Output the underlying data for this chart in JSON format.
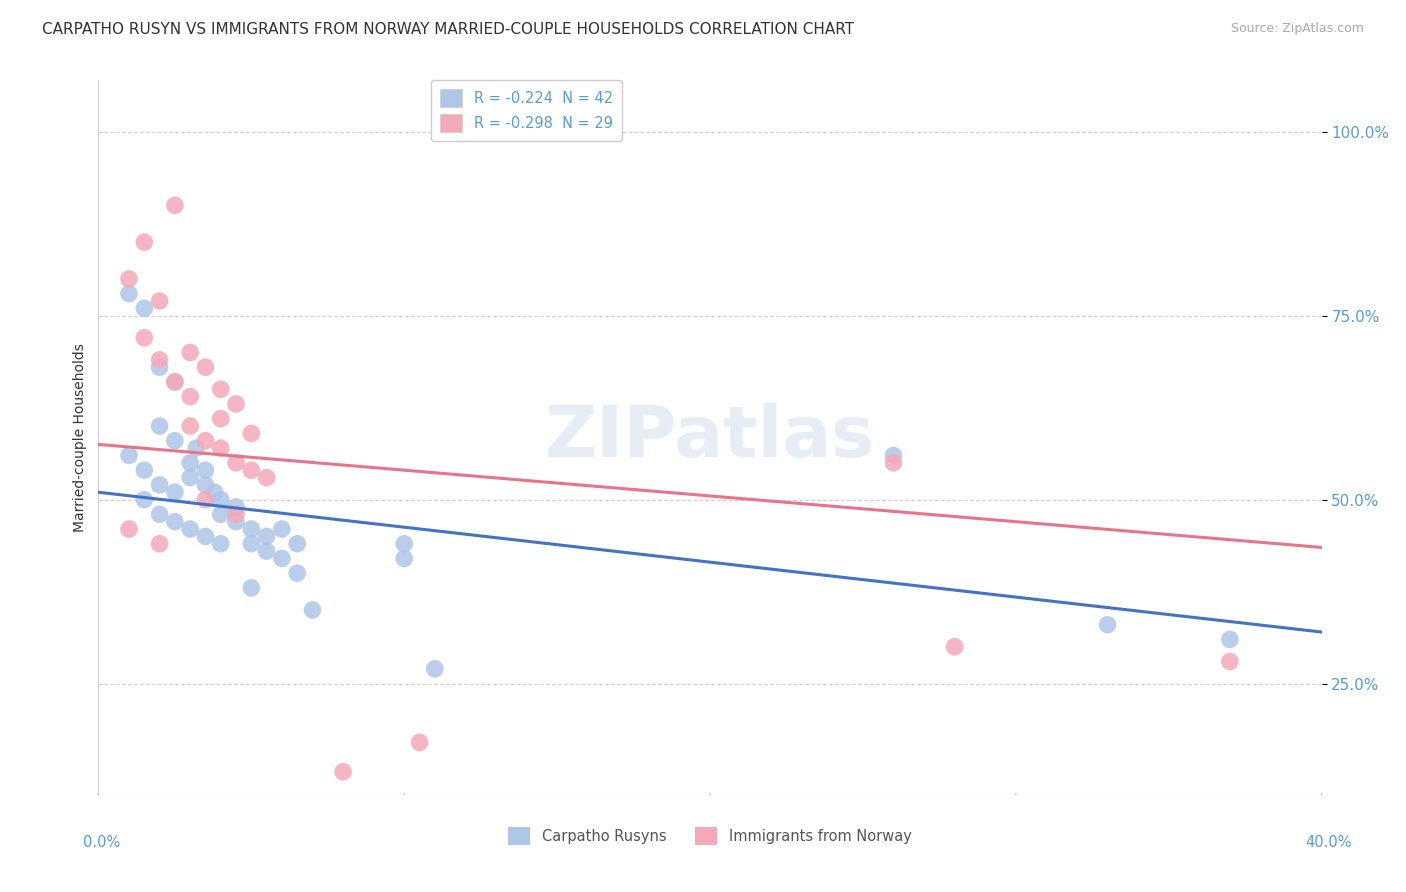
{
  "title": "CARPATHO RUSYN VS IMMIGRANTS FROM NORWAY MARRIED-COUPLE HOUSEHOLDS CORRELATION CHART",
  "source": "Source: ZipAtlas.com",
  "ylabel": "Married-couple Households",
  "xlim": [
    0.0,
    40.0
  ],
  "ylim": [
    10.0,
    107.0
  ],
  "yticks": [
    25.0,
    50.0,
    75.0,
    100.0
  ],
  "ytick_labels": [
    "25.0%",
    "50.0%",
    "75.0%",
    "100.0%"
  ],
  "background_color": "#ffffff",
  "grid_color": "#d0d0d0",
  "watermark": "ZIPatlas",
  "legend_entries": [
    {
      "label": "R = -0.224  N = 42",
      "color": "#aec6e8"
    },
    {
      "label": "R = -0.298  N = 29",
      "color": "#f4a8b8"
    }
  ],
  "legend_bottom": [
    {
      "label": "Carpatho Rusyns",
      "color": "#aec6e8"
    },
    {
      "label": "Immigrants from Norway",
      "color": "#f4a8b8"
    }
  ],
  "blue_scatter": [
    [
      1.0,
      78
    ],
    [
      1.5,
      76
    ],
    [
      2.0,
      68
    ],
    [
      2.5,
      66
    ],
    [
      2.0,
      60
    ],
    [
      2.5,
      58
    ],
    [
      3.0,
      55
    ],
    [
      3.0,
      53
    ],
    [
      3.2,
      57
    ],
    [
      3.5,
      54
    ],
    [
      3.5,
      52
    ],
    [
      3.8,
      51
    ],
    [
      4.0,
      50
    ],
    [
      4.0,
      48
    ],
    [
      4.5,
      49
    ],
    [
      4.5,
      47
    ],
    [
      5.0,
      46
    ],
    [
      5.0,
      44
    ],
    [
      5.5,
      45
    ],
    [
      5.5,
      43
    ],
    [
      6.0,
      46
    ],
    [
      6.0,
      42
    ],
    [
      6.5,
      44
    ],
    [
      6.5,
      40
    ],
    [
      1.5,
      50
    ],
    [
      2.0,
      48
    ],
    [
      2.5,
      47
    ],
    [
      3.0,
      46
    ],
    [
      3.5,
      45
    ],
    [
      4.0,
      44
    ],
    [
      1.0,
      56
    ],
    [
      1.5,
      54
    ],
    [
      2.0,
      52
    ],
    [
      2.5,
      51
    ],
    [
      10.0,
      44
    ],
    [
      10.0,
      42
    ],
    [
      11.0,
      27
    ],
    [
      26.0,
      56
    ],
    [
      33.0,
      33
    ],
    [
      37.0,
      31
    ],
    [
      5.0,
      38
    ],
    [
      7.0,
      35
    ]
  ],
  "pink_scatter": [
    [
      1.5,
      85
    ],
    [
      2.5,
      90
    ],
    [
      1.0,
      80
    ],
    [
      2.0,
      77
    ],
    [
      3.0,
      70
    ],
    [
      3.5,
      68
    ],
    [
      4.0,
      65
    ],
    [
      4.5,
      63
    ],
    [
      3.0,
      60
    ],
    [
      3.5,
      58
    ],
    [
      4.0,
      57
    ],
    [
      4.5,
      55
    ],
    [
      5.0,
      54
    ],
    [
      5.5,
      53
    ],
    [
      1.5,
      72
    ],
    [
      2.0,
      69
    ],
    [
      2.5,
      66
    ],
    [
      3.0,
      64
    ],
    [
      4.0,
      61
    ],
    [
      5.0,
      59
    ],
    [
      3.5,
      50
    ],
    [
      4.5,
      48
    ],
    [
      1.0,
      46
    ],
    [
      2.0,
      44
    ],
    [
      26.0,
      55
    ],
    [
      28.0,
      30
    ],
    [
      37.0,
      28
    ],
    [
      10.5,
      17
    ],
    [
      8.0,
      13
    ]
  ],
  "blue_line_x": [
    0.0,
    40.0
  ],
  "blue_line_y": [
    51.0,
    32.0
  ],
  "pink_line_x": [
    0.0,
    40.0
  ],
  "pink_line_y": [
    57.5,
    43.5
  ],
  "blue_color": "#4472c4",
  "pink_color": "#e8748a",
  "scatter_blue": "#aec6e8",
  "scatter_pink": "#f4a8b8",
  "title_fontsize": 11,
  "source_fontsize": 9,
  "axis_label_color": "#5b9bd5"
}
